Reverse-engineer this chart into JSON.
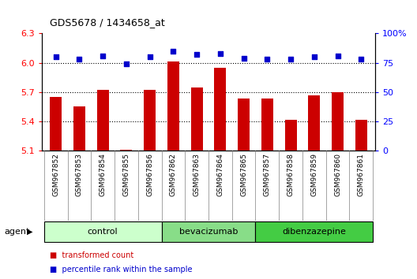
{
  "title": "GDS5678 / 1434658_at",
  "samples": [
    "GSM967852",
    "GSM967853",
    "GSM967854",
    "GSM967855",
    "GSM967856",
    "GSM967862",
    "GSM967863",
    "GSM967864",
    "GSM967865",
    "GSM967857",
    "GSM967858",
    "GSM967859",
    "GSM967860",
    "GSM967861"
  ],
  "bar_values": [
    5.65,
    5.55,
    5.72,
    5.11,
    5.72,
    6.01,
    5.75,
    5.95,
    5.63,
    5.63,
    5.42,
    5.67,
    5.7,
    5.42
  ],
  "dot_values": [
    80,
    78,
    81,
    74,
    80,
    85,
    82,
    83,
    79,
    78,
    78,
    80,
    81,
    78
  ],
  "groups": [
    {
      "label": "control",
      "start": 0,
      "end": 5,
      "color": "#ccffcc"
    },
    {
      "label": "bevacizumab",
      "start": 5,
      "end": 9,
      "color": "#88dd88"
    },
    {
      "label": "dibenzazepine",
      "start": 9,
      "end": 14,
      "color": "#44cc44"
    }
  ],
  "ylim_left": [
    5.1,
    6.3
  ],
  "ylim_right": [
    0,
    100
  ],
  "yticks_left": [
    5.1,
    5.4,
    5.7,
    6.0,
    6.3
  ],
  "yticks_right": [
    0,
    25,
    50,
    75,
    100
  ],
  "ytick_labels_left": [
    "5.1",
    "5.4",
    "5.7",
    "6.0",
    "6.3"
  ],
  "ytick_labels_right": [
    "0",
    "25",
    "50",
    "75",
    "100%"
  ],
  "bar_color": "#cc0000",
  "dot_color": "#0000cc",
  "bar_bottom": 5.1,
  "grid_values": [
    5.4,
    5.7,
    6.0
  ],
  "agent_label": "agent",
  "legend_bar": "transformed count",
  "legend_dot": "percentile rank within the sample",
  "bg_color": "#e8e8e8"
}
